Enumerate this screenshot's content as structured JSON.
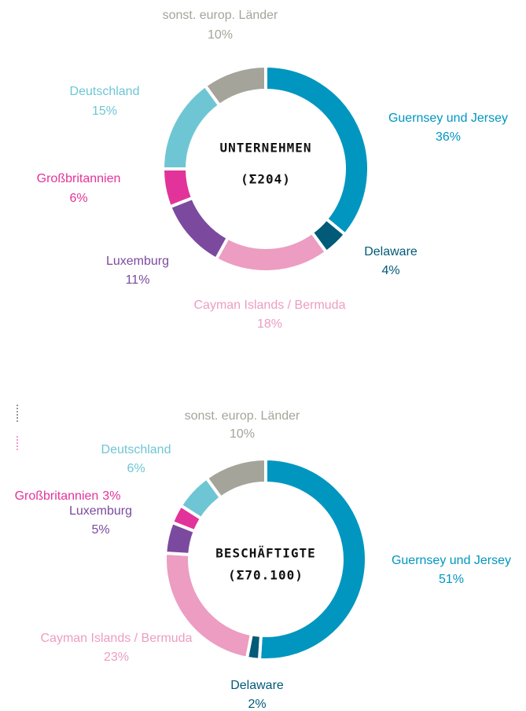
{
  "chart_data": [
    {
      "type": "pie",
      "donut": true,
      "center_label": [
        "UNTERNEHMEN",
        "(Σ204)"
      ],
      "categories": [
        "Guernsey und Jersey",
        "Delaware",
        "Cayman Islands / Bermuda",
        "Luxemburg",
        "Großbritannien",
        "Deutschland",
        "sonst. europ. Länder"
      ],
      "values": [
        36,
        4,
        18,
        11,
        6,
        15,
        10
      ],
      "value_labels": [
        "36%",
        "4%",
        "18%",
        "11%",
        "6%",
        "15%",
        "10%"
      ],
      "colors": [
        "#0096c0",
        "#005a78",
        "#ec9dc1",
        "#7b4a9e",
        "#e2339a",
        "#6ec6d4",
        "#a5a49a"
      ]
    },
    {
      "type": "pie",
      "donut": true,
      "center_label": [
        "BESCHÄFTIGTE",
        "(Σ70.100)"
      ],
      "categories": [
        "Guernsey und Jersey",
        "Delaware",
        "Cayman Islands / Bermuda",
        "Luxemburg",
        "Großbritannien",
        "Deutschland",
        "sonst. europ. Länder"
      ],
      "values": [
        51,
        2,
        23,
        5,
        3,
        6,
        10
      ],
      "value_labels": [
        "51%",
        "2%",
        "23%",
        "5%",
        "3%",
        "6%",
        "10%"
      ],
      "colors": [
        "#0096c0",
        "#005a78",
        "#ec9dc1",
        "#7b4a9e",
        "#e2339a",
        "#6ec6d4",
        "#a5a49a"
      ]
    }
  ]
}
